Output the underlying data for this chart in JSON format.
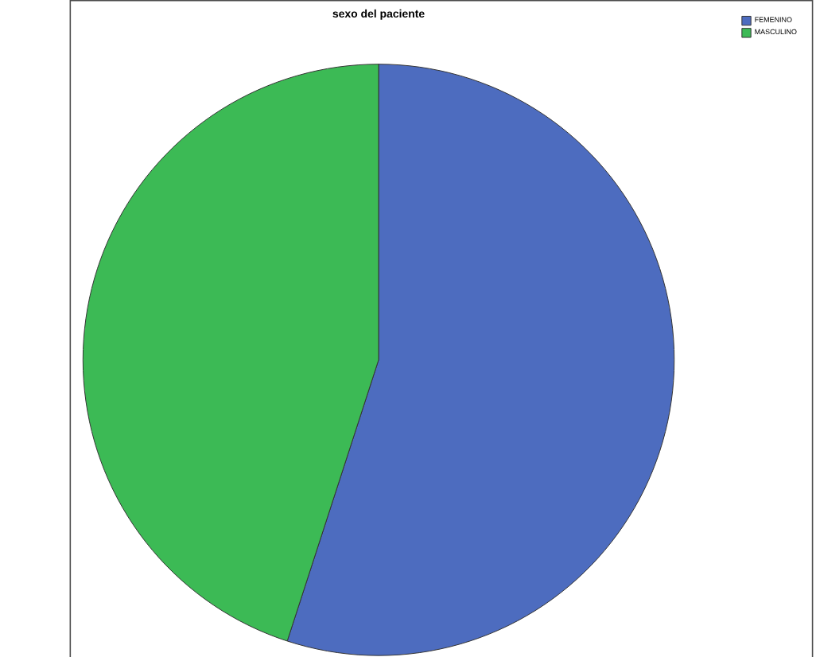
{
  "chart_data": {
    "type": "pie",
    "title": "sexo del paciente",
    "categories": [
      "FEMENINO",
      "MASCULINO"
    ],
    "values": [
      55,
      45
    ],
    "colors": [
      "#4d6cbf",
      "#3cba55"
    ],
    "legend": "top right"
  }
}
